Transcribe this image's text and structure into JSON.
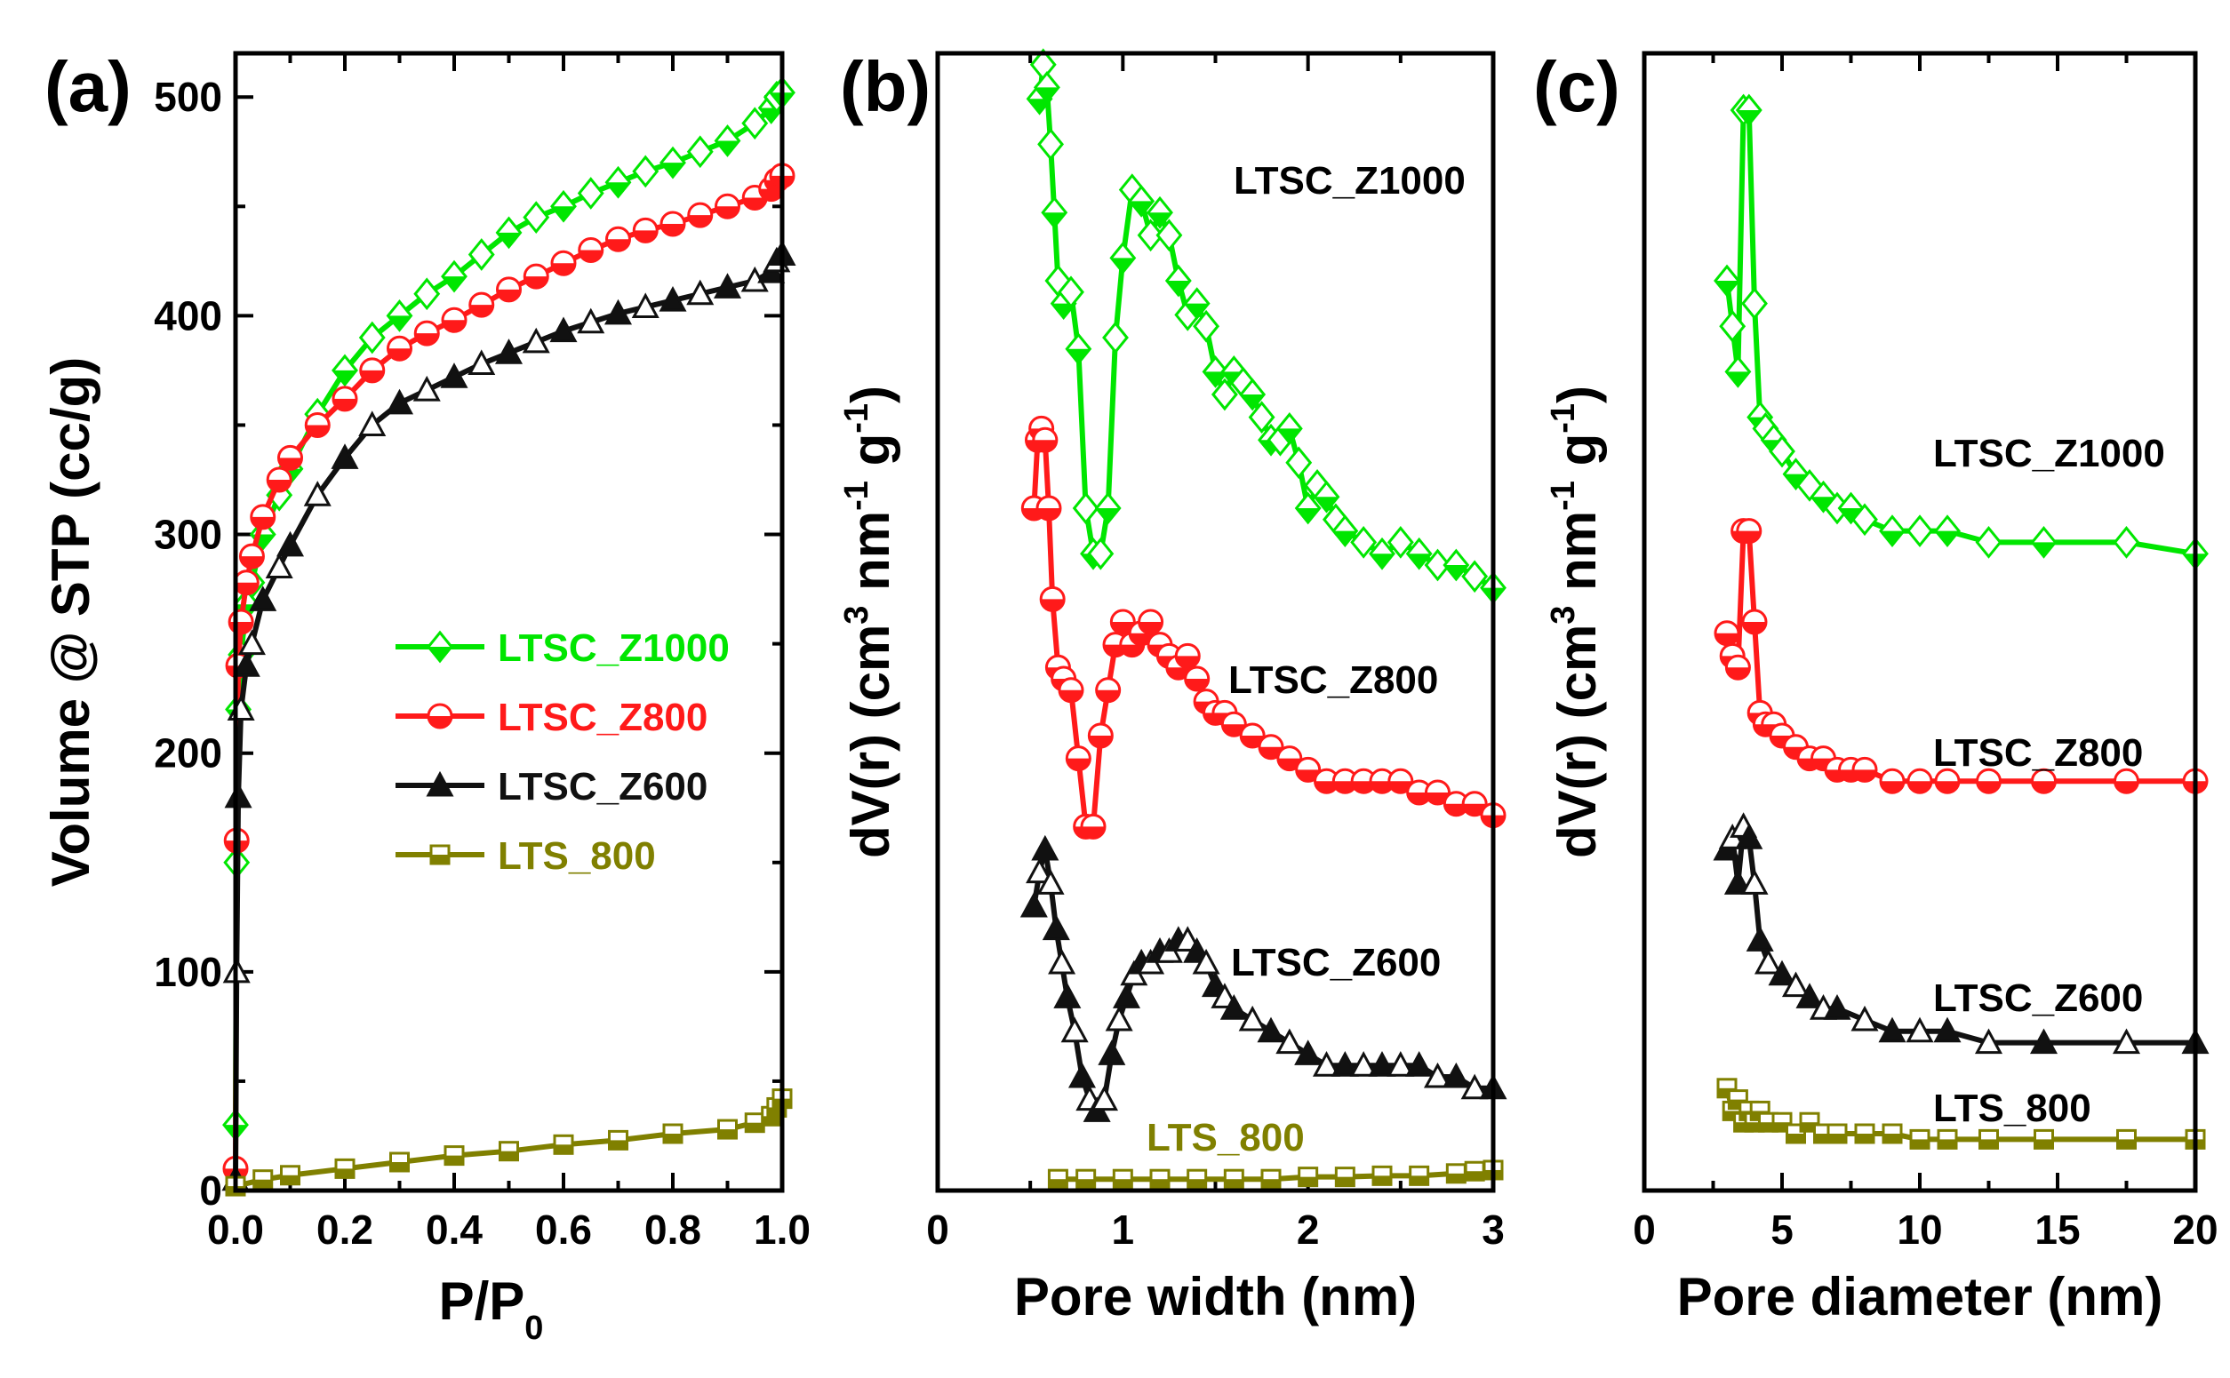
{
  "colors": {
    "LTSC_Z1000": "#00e600",
    "LTSC_Z800": "#ff1a1a",
    "LTSC_Z600": "#111111",
    "LTS_800": "#808000"
  },
  "chart_data": [
    {
      "panel": "(a)",
      "type": "line",
      "xlabel_main": "P/P",
      "xlabel_sub": "0",
      "ylabel": "Volume @ STP (cc/g)",
      "xlim": [
        0.0,
        1.0
      ],
      "ylim": [
        0,
        520
      ],
      "xticks": [
        "0.0",
        "0.2",
        "0.4",
        "0.6",
        "0.8",
        "1.0"
      ],
      "yticks": [
        "0",
        "100",
        "200",
        "300",
        "400",
        "500"
      ],
      "legend_position": "center-right",
      "series": [
        {
          "name": "LTSC_Z1000",
          "marker": "diamond",
          "x": [
            0.0,
            0.002,
            0.005,
            0.01,
            0.02,
            0.03,
            0.05,
            0.08,
            0.1,
            0.15,
            0.2,
            0.25,
            0.3,
            0.35,
            0.4,
            0.45,
            0.5,
            0.55,
            0.6,
            0.65,
            0.7,
            0.75,
            0.8,
            0.85,
            0.9,
            0.95,
            0.98,
            0.99,
            1.0
          ],
          "y": [
            30,
            150,
            220,
            245,
            268,
            278,
            300,
            318,
            330,
            355,
            375,
            390,
            400,
            410,
            418,
            428,
            438,
            445,
            450,
            456,
            461,
            466,
            470,
            475,
            480,
            488,
            495,
            500,
            502
          ]
        },
        {
          "name": "LTSC_Z800",
          "marker": "half-circle",
          "x": [
            0.0,
            0.002,
            0.005,
            0.01,
            0.02,
            0.03,
            0.05,
            0.08,
            0.1,
            0.15,
            0.2,
            0.25,
            0.3,
            0.35,
            0.4,
            0.45,
            0.5,
            0.55,
            0.6,
            0.65,
            0.7,
            0.75,
            0.8,
            0.85,
            0.9,
            0.95,
            0.98,
            0.99,
            1.0
          ],
          "y": [
            10,
            160,
            240,
            260,
            278,
            290,
            308,
            325,
            335,
            350,
            362,
            375,
            385,
            392,
            398,
            405,
            412,
            418,
            424,
            430,
            435,
            439,
            442,
            446,
            450,
            454,
            458,
            462,
            464
          ]
        },
        {
          "name": "LTSC_Z600",
          "marker": "triangle",
          "x": [
            0.0,
            0.002,
            0.005,
            0.01,
            0.02,
            0.03,
            0.05,
            0.08,
            0.1,
            0.15,
            0.2,
            0.25,
            0.3,
            0.35,
            0.4,
            0.45,
            0.5,
            0.55,
            0.6,
            0.65,
            0.7,
            0.75,
            0.8,
            0.85,
            0.9,
            0.95,
            0.98,
            0.99,
            1.0
          ],
          "y": [
            5,
            100,
            180,
            220,
            240,
            250,
            270,
            285,
            295,
            318,
            335,
            350,
            360,
            366,
            372,
            378,
            383,
            388,
            393,
            397,
            401,
            404,
            407,
            410,
            413,
            416,
            420,
            425,
            428
          ]
        },
        {
          "name": "LTS_800",
          "marker": "half-square",
          "x": [
            0.0,
            0.05,
            0.1,
            0.2,
            0.3,
            0.4,
            0.5,
            0.6,
            0.7,
            0.8,
            0.9,
            0.95,
            0.98,
            0.99,
            1.0
          ],
          "y": [
            2,
            5,
            7,
            10,
            13,
            16,
            18,
            21,
            23,
            26,
            28,
            31,
            34,
            38,
            42
          ]
        }
      ]
    },
    {
      "panel": "(b)",
      "type": "line",
      "xlabel": "Pore width (nm)",
      "ylabel_main": "dV(r) (cm",
      "ylabel_pieces": [
        "3",
        " nm",
        "-1",
        " g",
        "-1",
        ")"
      ],
      "xlim": [
        0,
        3
      ],
      "ylim": [
        0,
        1
      ],
      "xticks": [
        "0",
        "1",
        "2",
        "3"
      ],
      "series": [
        {
          "name": "LTSC_Z1000",
          "marker": "diamond",
          "x": [
            0.55,
            0.57,
            0.59,
            0.61,
            0.63,
            0.65,
            0.68,
            0.72,
            0.76,
            0.8,
            0.84,
            0.88,
            0.92,
            0.96,
            1.0,
            1.05,
            1.1,
            1.15,
            1.2,
            1.25,
            1.3,
            1.35,
            1.4,
            1.45,
            1.5,
            1.55,
            1.6,
            1.65,
            1.7,
            1.75,
            1.8,
            1.85,
            1.9,
            1.95,
            2.0,
            2.05,
            2.1,
            2.15,
            2.2,
            2.3,
            2.4,
            2.5,
            2.6,
            2.7,
            2.8,
            2.9,
            3.0
          ],
          "y": [
            0.96,
            0.99,
            0.97,
            0.92,
            0.86,
            0.8,
            0.78,
            0.79,
            0.74,
            0.6,
            0.56,
            0.56,
            0.6,
            0.75,
            0.82,
            0.88,
            0.87,
            0.84,
            0.86,
            0.84,
            0.8,
            0.77,
            0.78,
            0.76,
            0.72,
            0.7,
            0.72,
            0.71,
            0.7,
            0.68,
            0.66,
            0.66,
            0.67,
            0.64,
            0.6,
            0.62,
            0.61,
            0.59,
            0.58,
            0.57,
            0.56,
            0.57,
            0.56,
            0.55,
            0.55,
            0.54,
            0.53
          ]
        },
        {
          "name": "LTSC_Z800",
          "marker": "half-circle",
          "x": [
            0.52,
            0.54,
            0.56,
            0.58,
            0.6,
            0.62,
            0.65,
            0.68,
            0.72,
            0.76,
            0.8,
            0.84,
            0.88,
            0.92,
            0.96,
            1.0,
            1.05,
            1.1,
            1.15,
            1.2,
            1.25,
            1.3,
            1.35,
            1.4,
            1.45,
            1.5,
            1.55,
            1.6,
            1.7,
            1.8,
            1.9,
            2.0,
            2.1,
            2.2,
            2.3,
            2.4,
            2.5,
            2.6,
            2.7,
            2.8,
            2.9,
            3.0
          ],
          "y": [
            0.6,
            0.66,
            0.67,
            0.66,
            0.6,
            0.52,
            0.46,
            0.45,
            0.44,
            0.38,
            0.32,
            0.32,
            0.4,
            0.44,
            0.48,
            0.5,
            0.48,
            0.49,
            0.5,
            0.48,
            0.47,
            0.46,
            0.47,
            0.45,
            0.43,
            0.42,
            0.42,
            0.41,
            0.4,
            0.39,
            0.38,
            0.37,
            0.36,
            0.36,
            0.36,
            0.36,
            0.36,
            0.35,
            0.35,
            0.34,
            0.34,
            0.33
          ]
        },
        {
          "name": "LTSC_Z600",
          "marker": "triangle",
          "x": [
            0.52,
            0.55,
            0.58,
            0.61,
            0.64,
            0.67,
            0.7,
            0.74,
            0.78,
            0.82,
            0.86,
            0.9,
            0.94,
            0.98,
            1.02,
            1.06,
            1.1,
            1.15,
            1.2,
            1.25,
            1.3,
            1.35,
            1.4,
            1.45,
            1.5,
            1.55,
            1.6,
            1.7,
            1.8,
            1.9,
            2.0,
            2.1,
            2.2,
            2.3,
            2.4,
            2.5,
            2.6,
            2.7,
            2.8,
            2.9,
            3.0
          ],
          "y": [
            0.25,
            0.28,
            0.3,
            0.27,
            0.23,
            0.2,
            0.17,
            0.14,
            0.1,
            0.08,
            0.07,
            0.08,
            0.12,
            0.15,
            0.17,
            0.19,
            0.2,
            0.2,
            0.21,
            0.21,
            0.22,
            0.22,
            0.21,
            0.2,
            0.18,
            0.17,
            0.16,
            0.15,
            0.14,
            0.13,
            0.12,
            0.11,
            0.11,
            0.11,
            0.11,
            0.11,
            0.11,
            0.1,
            0.1,
            0.09,
            0.09
          ]
        },
        {
          "name": "LTS_800",
          "marker": "half-square",
          "x": [
            0.65,
            0.8,
            1.0,
            1.2,
            1.4,
            1.6,
            1.8,
            2.0,
            2.2,
            2.4,
            2.6,
            2.8,
            2.9,
            3.0
          ],
          "y": [
            0.01,
            0.01,
            0.01,
            0.01,
            0.01,
            0.01,
            0.01,
            0.012,
            0.012,
            0.013,
            0.013,
            0.015,
            0.017,
            0.018
          ]
        }
      ]
    },
    {
      "panel": "(c)",
      "type": "line",
      "xlabel": "Pore diameter (nm)",
      "ylabel_main": "dV(r) (cm",
      "ylabel_pieces": [
        "3",
        " nm",
        "-1",
        " g",
        "-1",
        ")"
      ],
      "xlim": [
        0,
        20
      ],
      "ylim": [
        0,
        1
      ],
      "xticks": [
        "0",
        "5",
        "10",
        "15",
        "20"
      ],
      "series": [
        {
          "name": "LTSC_Z1000",
          "marker": "diamond",
          "x": [
            3.0,
            3.2,
            3.4,
            3.6,
            3.8,
            4.0,
            4.2,
            4.4,
            4.7,
            5.0,
            5.5,
            6.0,
            6.5,
            7.0,
            7.5,
            8.0,
            9.0,
            10.0,
            11.0,
            12.5,
            14.5,
            17.5,
            20.0
          ],
          "y": [
            0.8,
            0.76,
            0.72,
            0.95,
            0.95,
            0.78,
            0.68,
            0.67,
            0.66,
            0.65,
            0.63,
            0.62,
            0.61,
            0.6,
            0.6,
            0.59,
            0.58,
            0.58,
            0.58,
            0.57,
            0.57,
            0.57,
            0.56
          ]
        },
        {
          "name": "LTSC_Z800",
          "marker": "half-circle",
          "x": [
            3.0,
            3.2,
            3.4,
            3.6,
            3.8,
            4.0,
            4.2,
            4.4,
            4.7,
            5.0,
            5.5,
            6.0,
            6.5,
            7.0,
            7.5,
            8.0,
            9.0,
            10.0,
            11.0,
            12.5,
            14.5,
            17.5,
            20.0
          ],
          "y": [
            0.49,
            0.47,
            0.46,
            0.58,
            0.58,
            0.5,
            0.42,
            0.41,
            0.41,
            0.4,
            0.39,
            0.38,
            0.38,
            0.37,
            0.37,
            0.37,
            0.36,
            0.36,
            0.36,
            0.36,
            0.36,
            0.36,
            0.36
          ]
        },
        {
          "name": "LTSC_Z600",
          "marker": "triangle",
          "x": [
            3.0,
            3.2,
            3.4,
            3.6,
            3.8,
            4.0,
            4.2,
            4.5,
            5.0,
            5.5,
            6.0,
            6.5,
            7.0,
            8.0,
            9.0,
            10.0,
            11.0,
            12.5,
            14.5,
            17.5,
            20.0
          ],
          "y": [
            0.3,
            0.31,
            0.27,
            0.32,
            0.31,
            0.27,
            0.22,
            0.2,
            0.19,
            0.18,
            0.17,
            0.16,
            0.16,
            0.15,
            0.14,
            0.14,
            0.14,
            0.13,
            0.13,
            0.13,
            0.13
          ]
        },
        {
          "name": "LTS_800",
          "marker": "half-square",
          "x": [
            3.0,
            3.2,
            3.4,
            3.6,
            3.8,
            4.0,
            4.2,
            4.5,
            5.0,
            5.5,
            6.0,
            6.5,
            7.0,
            8.0,
            9.0,
            10.0,
            11.0,
            12.5,
            14.5,
            17.5,
            20.0
          ],
          "y": [
            0.09,
            0.07,
            0.08,
            0.06,
            0.07,
            0.06,
            0.07,
            0.06,
            0.06,
            0.05,
            0.06,
            0.05,
            0.05,
            0.05,
            0.05,
            0.045,
            0.045,
            0.045,
            0.045,
            0.045,
            0.045
          ]
        }
      ]
    }
  ]
}
